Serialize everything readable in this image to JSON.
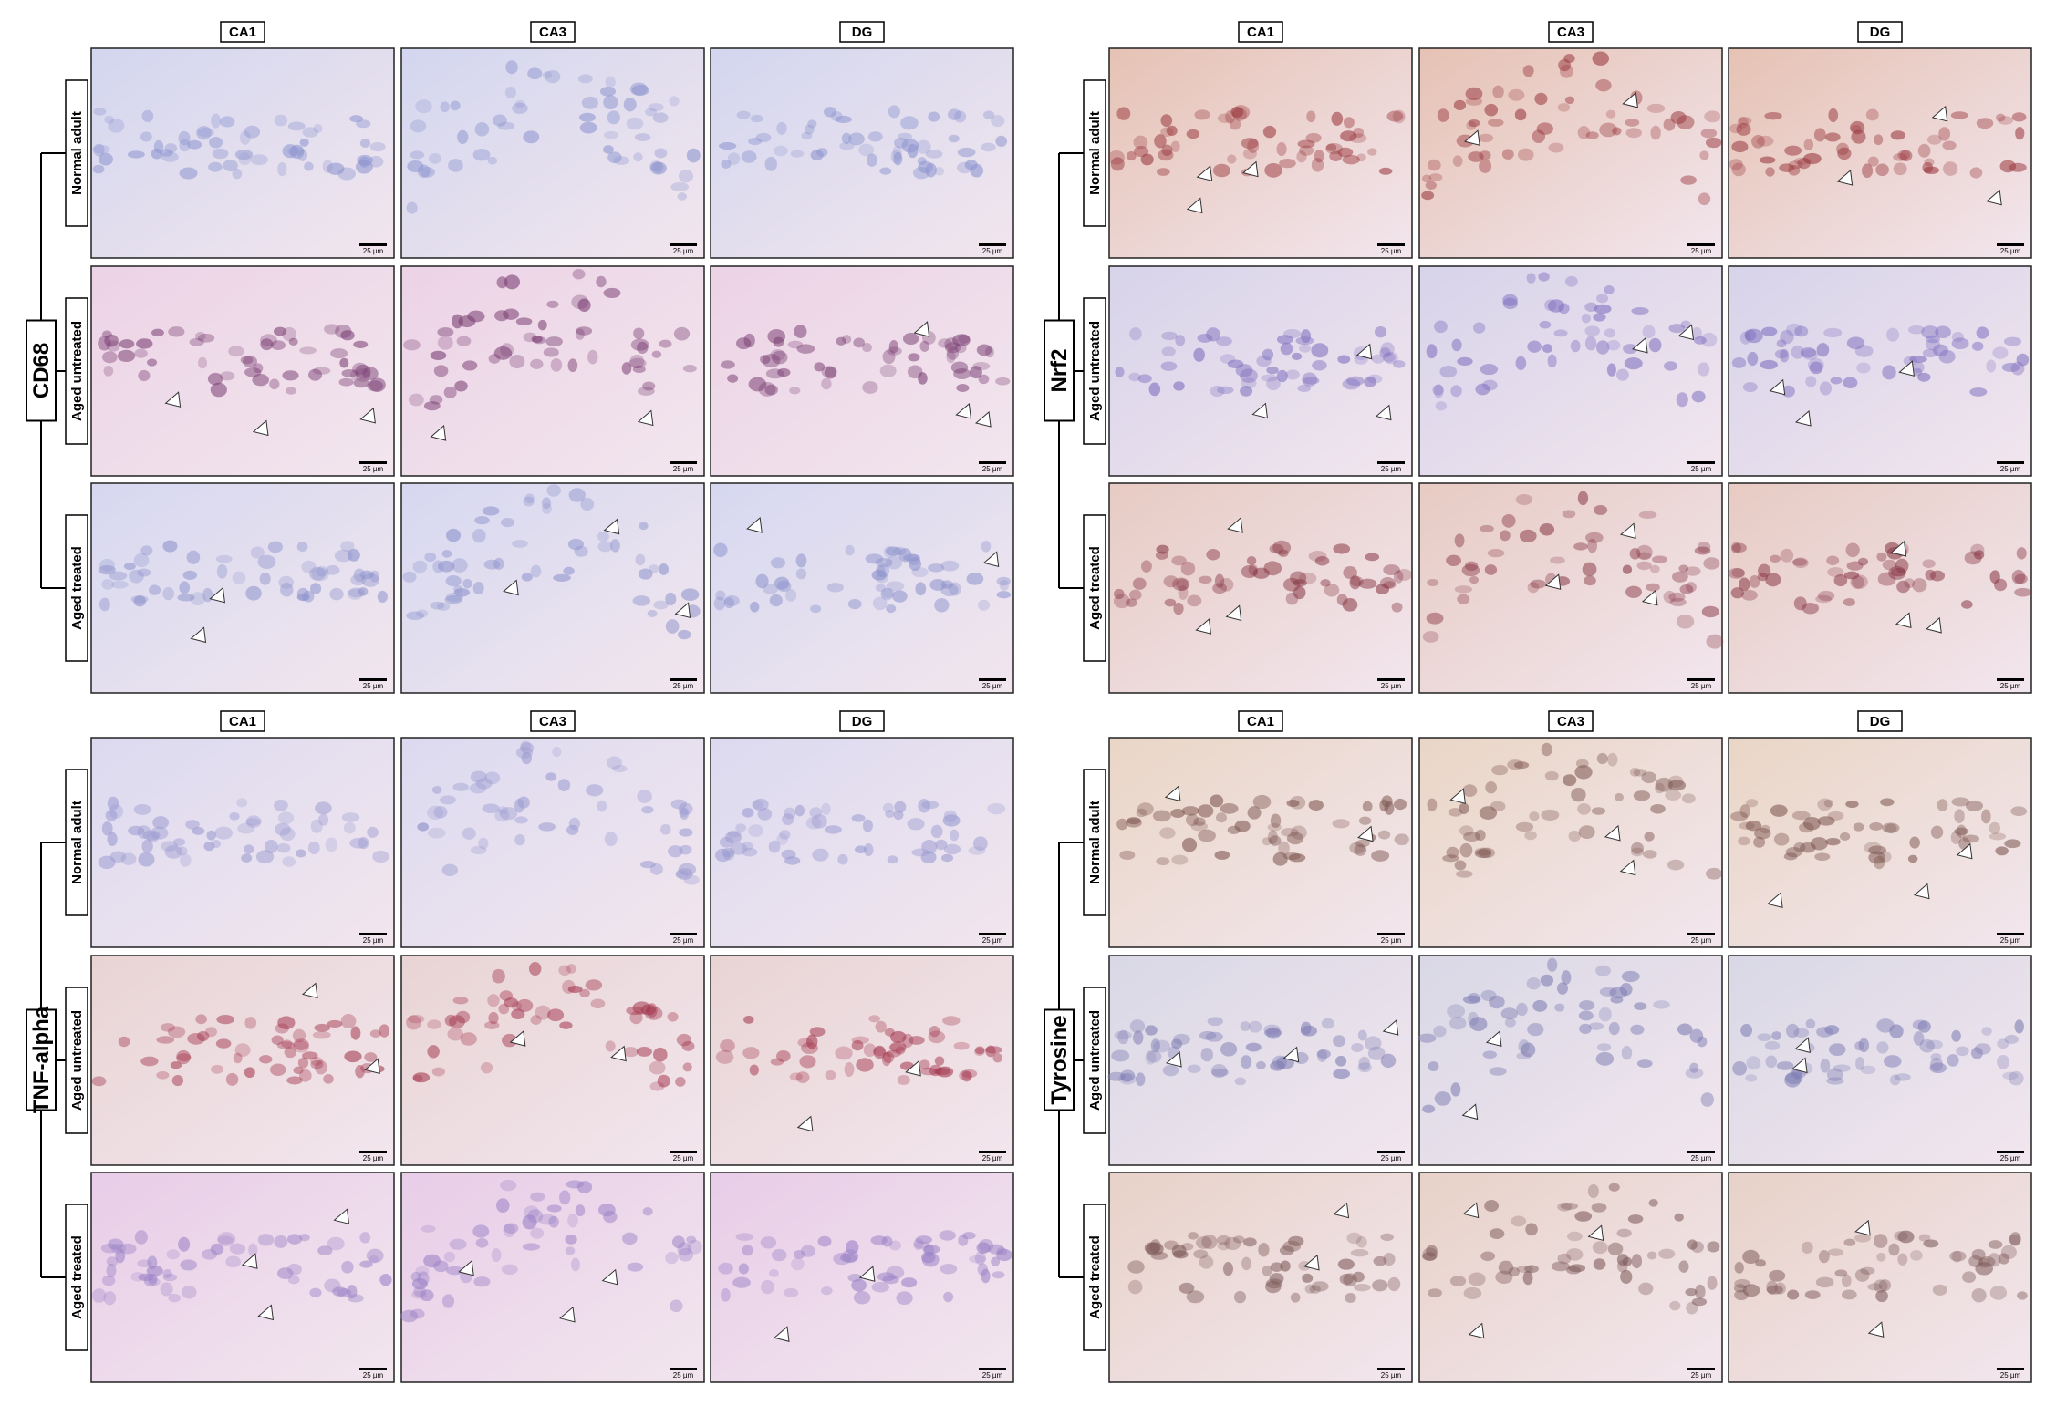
{
  "figure": {
    "panels": [
      {
        "marker": "CD68",
        "columns": [
          "CA1",
          "CA3",
          "DG"
        ],
        "rows": [
          "Normal adult",
          "Aged untreated",
          "Aged treated"
        ]
      },
      {
        "marker": "Nrf2",
        "columns": [
          "CA1",
          "CA3",
          "DG"
        ],
        "rows": [
          "Normal adult",
          "Aged untreated",
          "Aged treated"
        ]
      },
      {
        "marker": "TNF-alpha",
        "columns": [
          "CA1",
          "CA3",
          "DG"
        ],
        "rows": [
          "Normal adult",
          "Aged untreated",
          "Aged treated"
        ]
      },
      {
        "marker": "Tyrosine",
        "columns": [
          "CA1",
          "CA3",
          "DG"
        ],
        "rows": [
          "Normal adult",
          "Aged untreated",
          "Aged treated"
        ]
      }
    ],
    "scale_bar": "25 µm"
  }
}
